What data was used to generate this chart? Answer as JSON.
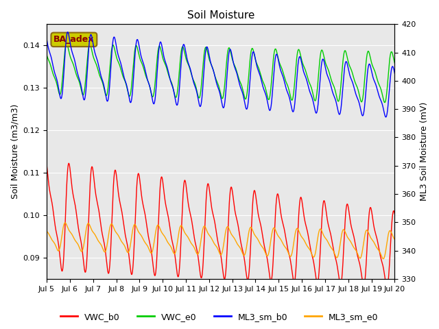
{
  "title": "Soil Moisture",
  "ylabel_left": "Soil Moisture (m3/m3)",
  "ylabel_right": "ML3 Soil Moisture (mV)",
  "ylim_left": [
    0.085,
    0.145
  ],
  "ylim_right": [
    330,
    420
  ],
  "annotation_text": "BA_adex",
  "annotation_color": "#8B0000",
  "annotation_bg": "#CCCC00",
  "bg_color": "#E8E8E8",
  "series": {
    "VWC_b0": {
      "color": "#FF0000",
      "label": "VWC_b0"
    },
    "VWC_e0": {
      "color": "#00CC00",
      "label": "VWC_e0"
    },
    "ML3_sm_b0": {
      "color": "#0000FF",
      "label": "ML3_sm_b0"
    },
    "ML3_sm_e0": {
      "color": "#FFA500",
      "label": "ML3_sm_e0"
    }
  },
  "xtick_labels": [
    "Jul 5",
    "Jul 6",
    "Jul 7",
    "Jul 8",
    "Jul 9",
    "Jul 10",
    "Jul 11",
    "Jul 12",
    "Jul 13",
    "Jul 14",
    "Jul 15",
    "Jul 16",
    "Jul 17",
    "Jul 18",
    "Jul 19",
    "Jul 20"
  ],
  "xtick_positions": [
    0,
    24,
    48,
    72,
    96,
    120,
    144,
    168,
    192,
    216,
    240,
    264,
    288,
    312,
    336,
    360
  ]
}
